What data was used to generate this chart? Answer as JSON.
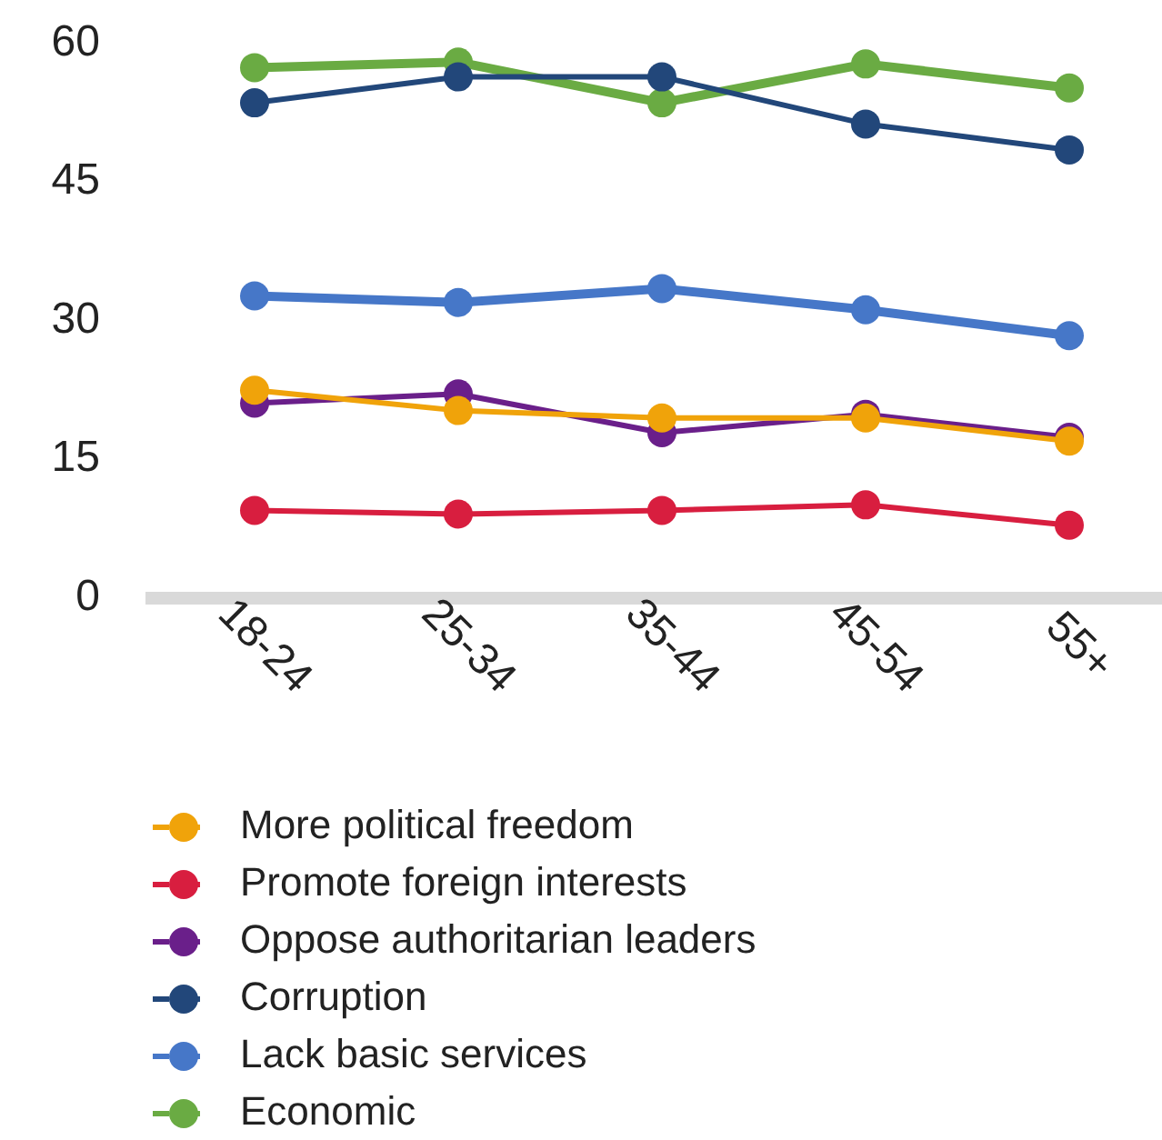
{
  "chart_data": {
    "type": "line",
    "categories": [
      "18-24",
      "25-34",
      "35-44",
      "45-54",
      "55+"
    ],
    "series": [
      {
        "name": "More political freedom",
        "color": "#f0a30a",
        "values": [
          22.5,
          20.3,
          19.5,
          19.5,
          17.0
        ]
      },
      {
        "name": "Promote foreign interests",
        "color": "#d81e3f",
        "values": [
          9.5,
          9.1,
          9.5,
          10.1,
          7.9
        ]
      },
      {
        "name": "Oppose authoritarian leaders",
        "color": "#6a1f8a",
        "values": [
          21.1,
          22.1,
          17.9,
          19.9,
          17.4
        ]
      },
      {
        "name": "Corruption",
        "color": "#22477a",
        "values": [
          53.6,
          56.4,
          56.4,
          51.3,
          48.5
        ]
      },
      {
        "name": "Lack basic services",
        "color": "#4677c8",
        "values": [
          32.7,
          32.0,
          33.5,
          31.2,
          28.4
        ]
      },
      {
        "name": "Economic",
        "color": "#6aab43",
        "values": [
          57.4,
          58.0,
          53.6,
          57.8,
          55.2
        ]
      }
    ],
    "ylim": [
      0,
      60
    ],
    "yticks": [
      0,
      15,
      30,
      45,
      60
    ],
    "grid": false,
    "legend": "bottom",
    "marker": "circle",
    "line_style": "solid"
  }
}
